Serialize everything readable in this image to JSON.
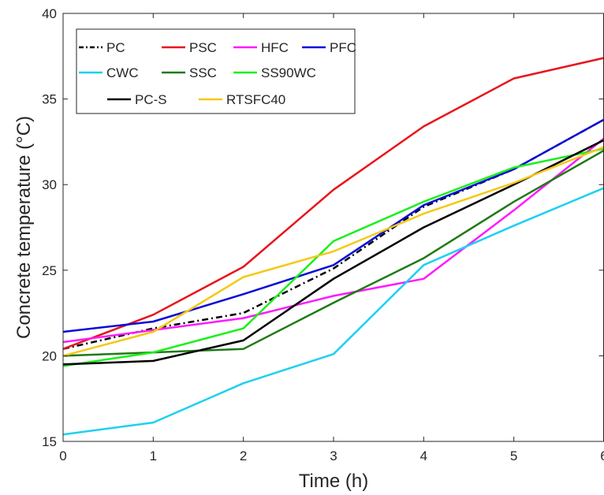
{
  "chart_data": {
    "type": "line",
    "title": "",
    "xlabel": "Time (h)",
    "ylabel": "Concrete temperature (°C)",
    "xlim": [
      0,
      6
    ],
    "ylim": [
      15,
      40
    ],
    "xticks": [
      "0",
      "1",
      "2",
      "3",
      "4",
      "5",
      "6"
    ],
    "yticks": [
      "15",
      "20",
      "25",
      "30",
      "35",
      "40"
    ],
    "grid": false,
    "legend_position": "top-left",
    "x": [
      0,
      1,
      2,
      3,
      4,
      5,
      6
    ],
    "series": [
      {
        "name": "PC",
        "color": "#000000",
        "dash": "dashdot",
        "values": [
          20.4,
          21.6,
          22.5,
          25.1,
          28.7,
          30.9,
          33.8
        ]
      },
      {
        "name": "PSC",
        "color": "#e8141c",
        "dash": "solid",
        "values": [
          20.4,
          22.4,
          25.2,
          29.7,
          33.4,
          36.2,
          37.4
        ]
      },
      {
        "name": "HFC",
        "color": "#ff19ff",
        "dash": "solid",
        "values": [
          20.8,
          21.5,
          22.2,
          23.5,
          24.5,
          28.5,
          32.7
        ]
      },
      {
        "name": "PFC",
        "color": "#0a0ad6",
        "dash": "solid",
        "values": [
          21.4,
          22.0,
          23.6,
          25.3,
          28.8,
          30.9,
          33.8
        ]
      },
      {
        "name": "CWC",
        "color": "#1ed0f0",
        "dash": "solid",
        "values": [
          15.4,
          16.1,
          18.4,
          20.1,
          25.3,
          27.6,
          29.8
        ]
      },
      {
        "name": "SSC",
        "color": "#1f7a16",
        "dash": "solid",
        "values": [
          20.0,
          20.2,
          20.4,
          23.1,
          25.7,
          29.0,
          32.0
        ]
      },
      {
        "name": "SS90WC",
        "color": "#19f019",
        "dash": "solid",
        "values": [
          19.4,
          20.2,
          21.6,
          26.7,
          29.0,
          31.0,
          32.1
        ]
      },
      {
        "name": "PC-S",
        "color": "#000000",
        "dash": "solid",
        "values": [
          19.5,
          19.7,
          20.9,
          24.5,
          27.5,
          30.0,
          32.6
        ]
      },
      {
        "name": "RTSFC40",
        "color": "#f5c816",
        "dash": "solid",
        "values": [
          20.0,
          21.4,
          24.6,
          26.1,
          28.3,
          30.1,
          32.2
        ]
      }
    ]
  }
}
